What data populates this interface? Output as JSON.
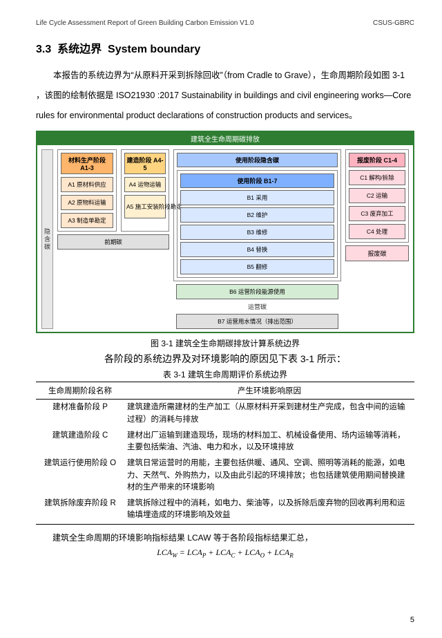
{
  "header": {
    "left": "Life Cycle Assessment Report of Green Building Carbon Emission V1.0",
    "right": "CSUS-GBRC"
  },
  "section": {
    "number": "3.3",
    "title_cn": "系统边界",
    "title_en": "System boundary"
  },
  "paragraph": "本报告的系统边界为“从原料开采到拆除回收”（from Cradle to Grave），生命周期阶段如图 3-1 ，该图的绘制依据是 ISO21930 :2017 Sustainability in buildings and civil engineering works—Core rules for environmental product declarations of construction products and services。",
  "diagram": {
    "title": "建筑全生命周期碳排放",
    "side_label": "隐含碳",
    "colA": {
      "header": "材料生产阶段 A1-3",
      "cells": [
        "A1 原材料供应",
        "A2 原物料运输",
        "A3 制造单勘定"
      ],
      "footer": "前期碳"
    },
    "colB": {
      "header": "建造阶段 A4-5",
      "cells": [
        "A4 运物运输",
        "A5 施工安装阶段勘定"
      ]
    },
    "mid": {
      "outer_header": "使用阶段隐含碳",
      "inner_header": "使用阶段 B1-7",
      "b_cells": [
        "B1 采用",
        "B2 维护",
        "B3 维修",
        "B4 替换",
        "B5 翻修"
      ],
      "b6": "B6 运营阶段能源使用",
      "b6_label": "运营碳",
      "b7": "B7 运营用水情况（排出范围）"
    },
    "colC": {
      "header": "报废阶段 C1-4",
      "cells": [
        "C1 解构/拆除",
        "C2 运输",
        "C3 废弃加工",
        "C4 处理"
      ],
      "footer": "报废碳"
    }
  },
  "fig_caption": "图 3-1 建筑全生命期碳排放计算系统边界",
  "intro_line": "各阶段的系统边界及对环境影响的原因见下表 3-1 所示：",
  "tbl_caption": "表 3-1 建筑生命周期评价系统边界",
  "table": {
    "head": [
      "生命周期阶段名称",
      "产生环境影响原因"
    ],
    "rows": [
      [
        "建材准备阶段 P",
        "建筑建造所需建材的生产加工（从原材料开采到建材生产完成，包含中间的运输过程）的消耗与排放"
      ],
      [
        "建筑建造阶段 C",
        "建材出厂运输到建造现场，现场的材料加工、机械设备使用、场内运输等消耗，主要包括柴油、汽油、电力和水，以及环境排放"
      ],
      [
        "建筑运行使用阶段 O",
        "建筑日常运营时的用能，主要包括供暖、通风、空调、照明等消耗的能源，如电力、天然气、外购热力，以及由此引起的环境排放；也包括建筑使用期间替换建材的生产带来的环境影响"
      ],
      [
        "建筑拆除废弃阶段 R",
        "建筑拆除过程中的消耗，如电力、柴油等，以及拆除后废弃物的回收再利用和运输填埋造成的环境影响及效益"
      ]
    ]
  },
  "after_table": "建筑全生命周期的环境影响指标结果 LCAW 等于各阶段指标结果汇总，",
  "formula": {
    "lhs": "LCA",
    "lhs_sub": "W",
    "terms": [
      [
        "LCA",
        "P"
      ],
      [
        "LCA",
        "C"
      ],
      [
        "LCA",
        "O"
      ],
      [
        "LCA",
        "R"
      ]
    ]
  },
  "page_number": "5"
}
